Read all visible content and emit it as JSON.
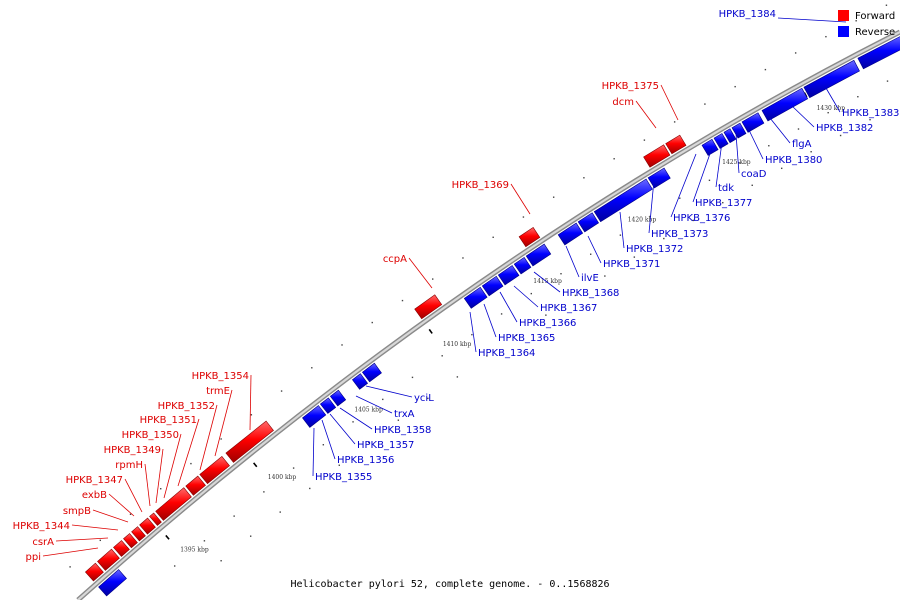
{
  "legend": [
    {
      "label": "Forward",
      "color": "#ff0000"
    },
    {
      "label": "Reverse",
      "color": "#0000ff"
    }
  ],
  "caption": "Helicobacter pylori 52, complete genome. - 0..1568826",
  "ticks": [
    "1395 kbp",
    "1400 kbp",
    "1405 kbp",
    "1410 kbp",
    "1415 kbp",
    "1420 kbp",
    "1425 kbp",
    "1430 kbp"
  ],
  "labels": {
    "forward": [
      "ppi",
      "csrA",
      "HPKB_1344",
      "smpB",
      "exbB",
      "HPKB_1347",
      "rpmH",
      "HPKB_1349",
      "HPKB_1350",
      "HPKB_1351",
      "HPKB_1352",
      "trmE",
      "HPKB_1354",
      "ccpA",
      "HPKB_1369",
      "dcm",
      "HPKB_1375"
    ],
    "reverse": [
      "HPKB_1355",
      "HPKB_1356",
      "HPKB_1357",
      "HPKB_1358",
      "trxA",
      "yciL",
      "HPKB_1364",
      "HPKB_1365",
      "HPKB_1366",
      "HPKB_1367",
      "HPKB_1368",
      "ilvE",
      "HPKB_1371",
      "HPKB_1372",
      "HPKB_1373",
      "HPKB_1376",
      "HPKB_1377",
      "tdk",
      "coaD",
      "HPKB_1380",
      "flgA",
      "HPKB_1382",
      "HPKB_1383",
      "HPKB_1384"
    ]
  }
}
